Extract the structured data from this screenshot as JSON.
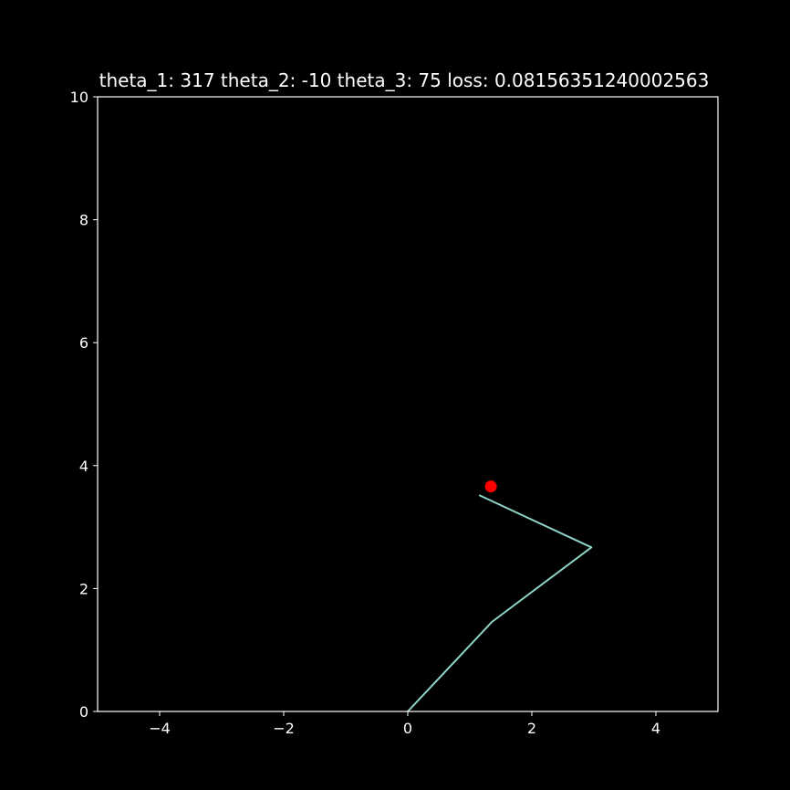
{
  "chart_data": {
    "type": "line",
    "title": "theta_1: 317 theta_2: -10 theta_3: 75 loss: 0.08156351240002563",
    "xlabel": "",
    "ylabel": "",
    "xlim": [
      -5,
      5
    ],
    "ylim": [
      0,
      10
    ],
    "xticks": [
      -4,
      -2,
      0,
      2,
      4
    ],
    "xtick_labels": [
      "−4",
      "−2",
      "0",
      "2",
      "4"
    ],
    "yticks": [
      0,
      2,
      4,
      6,
      8,
      10
    ],
    "ytick_labels": [
      "0",
      "2",
      "4",
      "6",
      "8",
      "10"
    ],
    "grid": false,
    "background": "#000000",
    "axes_color": "#ffffff",
    "series": [
      {
        "color": "#8dd3c7",
        "x": [
          0,
          1.36,
          2.96,
          1.15
        ],
        "y": [
          0,
          1.46,
          2.67,
          3.52
        ]
      }
    ],
    "target_point": {
      "x": 1.34,
      "y": 3.66,
      "color": "#ff0000"
    }
  }
}
